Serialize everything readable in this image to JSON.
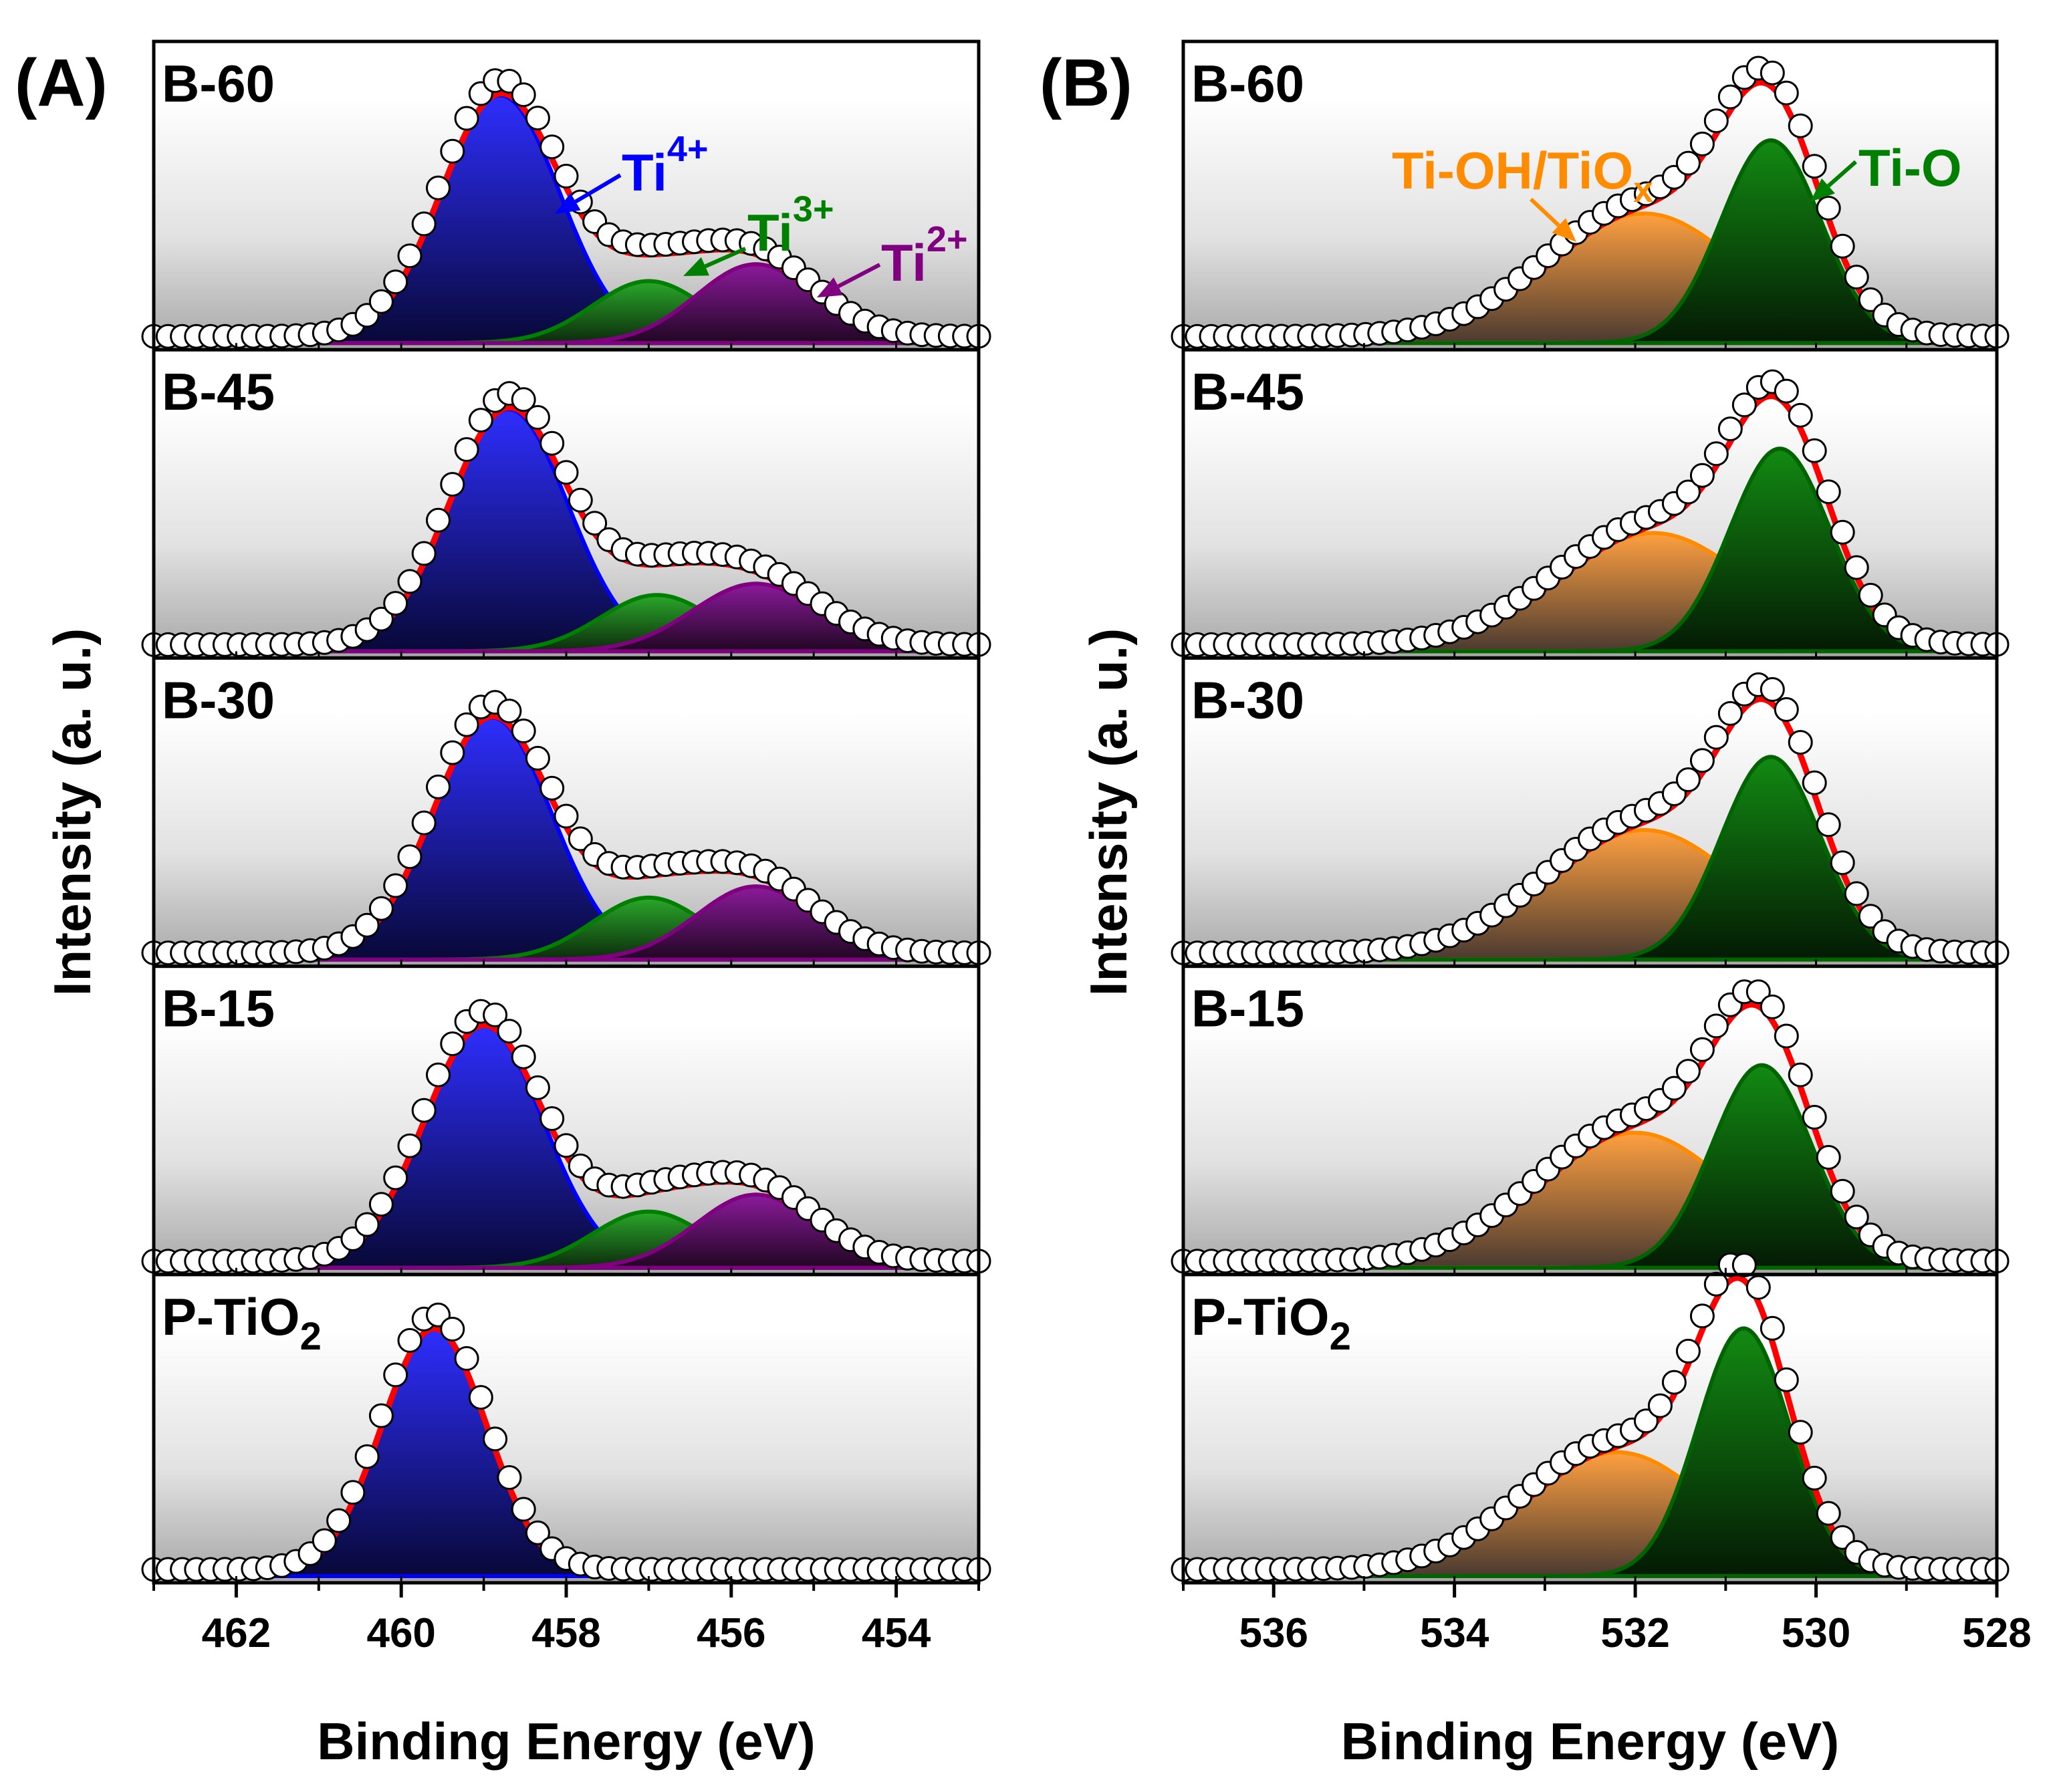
{
  "chart_data": [
    {
      "type": "line",
      "panel_label": "(A)",
      "xlabel": "Binding Energy (eV)",
      "ylabel": "Intensity (a. u.)",
      "xlim": [
        463,
        453
      ],
      "x_ticks": [
        "462",
        "460",
        "458",
        "456",
        "454"
      ],
      "x_tick_values": [
        462,
        460,
        458,
        456,
        454
      ],
      "grid": false,
      "annotations": [
        {
          "base": "Ti",
          "sup": "4+",
          "color": "#0000ff"
        },
        {
          "base": "Ti",
          "sup": "3+",
          "color": "#008000"
        },
        {
          "base": "Ti",
          "sup": "2+",
          "color": "#800080"
        }
      ],
      "series_legend": [
        "Ti4+",
        "Ti3+",
        "Ti2+",
        "Fit envelope",
        "Raw data"
      ],
      "subplots": [
        {
          "label": "B-60",
          "label_sub": "",
          "peaks": [
            {
              "name": "Ti4+",
              "center": 458.8,
              "fwhm": 1.7,
              "height": 0.88
            },
            {
              "name": "Ti3+",
              "center": 457.0,
              "fwhm": 1.6,
              "height": 0.22
            },
            {
              "name": "Ti2+",
              "center": 455.7,
              "fwhm": 1.7,
              "height": 0.28
            }
          ]
        },
        {
          "label": "B-45",
          "label_sub": "",
          "peaks": [
            {
              "name": "Ti4+",
              "center": 458.7,
              "fwhm": 1.7,
              "height": 0.86
            },
            {
              "name": "Ti3+",
              "center": 456.9,
              "fwhm": 1.6,
              "height": 0.2
            },
            {
              "name": "Ti2+",
              "center": 455.7,
              "fwhm": 1.8,
              "height": 0.24
            }
          ]
        },
        {
          "label": "B-30",
          "label_sub": "",
          "peaks": [
            {
              "name": "Ti4+",
              "center": 458.9,
              "fwhm": 1.7,
              "height": 0.86
            },
            {
              "name": "Ti3+",
              "center": 457.0,
              "fwhm": 1.6,
              "height": 0.22
            },
            {
              "name": "Ti2+",
              "center": 455.7,
              "fwhm": 1.7,
              "height": 0.26
            }
          ]
        },
        {
          "label": "B-15",
          "label_sub": "",
          "peaks": [
            {
              "name": "Ti4+",
              "center": 459.0,
              "fwhm": 1.7,
              "height": 0.86
            },
            {
              "name": "Ti3+",
              "center": 457.0,
              "fwhm": 1.6,
              "height": 0.2
            },
            {
              "name": "Ti2+",
              "center": 455.7,
              "fwhm": 1.7,
              "height": 0.26
            }
          ]
        },
        {
          "label": "P-TiO",
          "label_sub": "2",
          "peaks": [
            {
              "name": "Ti4+",
              "center": 459.6,
              "fwhm": 1.5,
              "height": 0.88
            }
          ]
        }
      ]
    },
    {
      "type": "line",
      "panel_label": "(B)",
      "xlabel": "Binding Energy (eV)",
      "ylabel": "Intensity (a. u.)",
      "xlim": [
        537,
        528
      ],
      "x_ticks": [
        "536",
        "534",
        "532",
        "530",
        "528"
      ],
      "x_tick_values": [
        536,
        534,
        532,
        530,
        528
      ],
      "grid": false,
      "annotations": [
        {
          "base": "Ti-OH/TiO",
          "sub": "x",
          "color": "#ff8c00"
        },
        {
          "base": "Ti-O",
          "color": "#008000"
        }
      ],
      "series_legend": [
        "Ti-OH/TiOx",
        "Ti-O",
        "Fit envelope",
        "Raw data"
      ],
      "subplots": [
        {
          "label": "B-60",
          "label_sub": "",
          "peaks": [
            {
              "name": "Ti-OH/TiOx",
              "center": 531.9,
              "fwhm": 2.5,
              "height": 0.46
            },
            {
              "name": "Ti-O",
              "center": 530.5,
              "fwhm": 1.3,
              "height": 0.72
            }
          ]
        },
        {
          "label": "B-45",
          "label_sub": "",
          "peaks": [
            {
              "name": "Ti-OH/TiOx",
              "center": 531.8,
              "fwhm": 2.5,
              "height": 0.42
            },
            {
              "name": "Ti-O",
              "center": 530.4,
              "fwhm": 1.3,
              "height": 0.72
            }
          ]
        },
        {
          "label": "B-30",
          "label_sub": "",
          "peaks": [
            {
              "name": "Ti-OH/TiOx",
              "center": 531.9,
              "fwhm": 2.5,
              "height": 0.46
            },
            {
              "name": "Ti-O",
              "center": 530.5,
              "fwhm": 1.3,
              "height": 0.72
            }
          ]
        },
        {
          "label": "B-15",
          "label_sub": "",
          "peaks": [
            {
              "name": "Ti-OH/TiOx",
              "center": 532.0,
              "fwhm": 2.5,
              "height": 0.48
            },
            {
              "name": "Ti-O",
              "center": 530.6,
              "fwhm": 1.3,
              "height": 0.72
            }
          ]
        },
        {
          "label": "P-TiO",
          "label_sub": "2",
          "peaks": [
            {
              "name": "Ti-OH/TiOx",
              "center": 532.2,
              "fwhm": 2.4,
              "height": 0.44
            },
            {
              "name": "Ti-O",
              "center": 530.8,
              "fwhm": 1.2,
              "height": 0.88
            }
          ]
        }
      ]
    }
  ],
  "colors": {
    "Ti4+": "#0000ff",
    "Ti3+": "#008000",
    "Ti2+": "#800080",
    "Ti-OH/TiOx": "#ff8c00",
    "Ti-O": "#006400",
    "envelope": "#ff0000",
    "marker_fill": "#ffffff",
    "marker_edge": "#000000"
  }
}
